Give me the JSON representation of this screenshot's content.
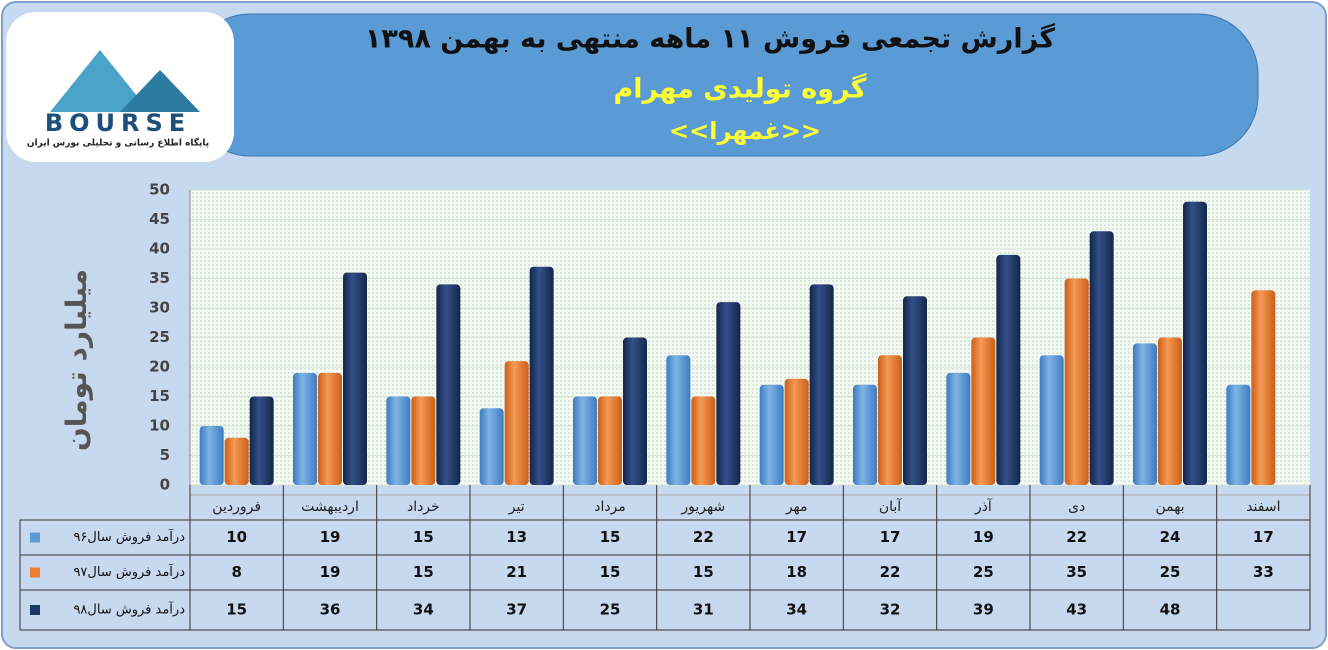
{
  "logo": {
    "name": "BOURSE",
    "tagline": "پایگاه اطلاع رسانی و تحلیلی بورس ایران"
  },
  "chart_data": {
    "type": "bar",
    "title": "گزارش تجمعی فروش  ۱۱ ماهه منتهی به بهمن ۱۳۹۸",
    "subtitle": "گروه تولیدی مهرام",
    "symbol": "<<غمهرا>>",
    "ylabel": "میلیارد تومان",
    "categories": [
      "فروردین",
      "اردیبهشت",
      "خرداد",
      "تیر",
      "مرداد",
      "شهریور",
      "مهر",
      "آبان",
      "آذر",
      "دی",
      "بهمن",
      "اسفند"
    ],
    "series": [
      {
        "name": "درآمد فروش سال۹۶",
        "color": "#5b9bd5",
        "values": [
          10,
          19,
          15,
          13,
          15,
          22,
          17,
          17,
          19,
          22,
          24,
          17
        ]
      },
      {
        "name": "درآمد فروش سال۹۷",
        "color": "#ed7d31",
        "values": [
          8,
          19,
          15,
          21,
          15,
          15,
          18,
          22,
          25,
          35,
          25,
          33
        ]
      },
      {
        "name": "درآمد فروش سال۹۸",
        "color": "#1f3864",
        "values": [
          15,
          36,
          34,
          37,
          25,
          31,
          34,
          32,
          39,
          43,
          48,
          null
        ]
      }
    ],
    "ylim": [
      0,
      50
    ],
    "yticks": [
      0,
      5,
      10,
      15,
      20,
      25,
      30,
      35,
      40,
      45,
      50
    ],
    "grid": true
  }
}
